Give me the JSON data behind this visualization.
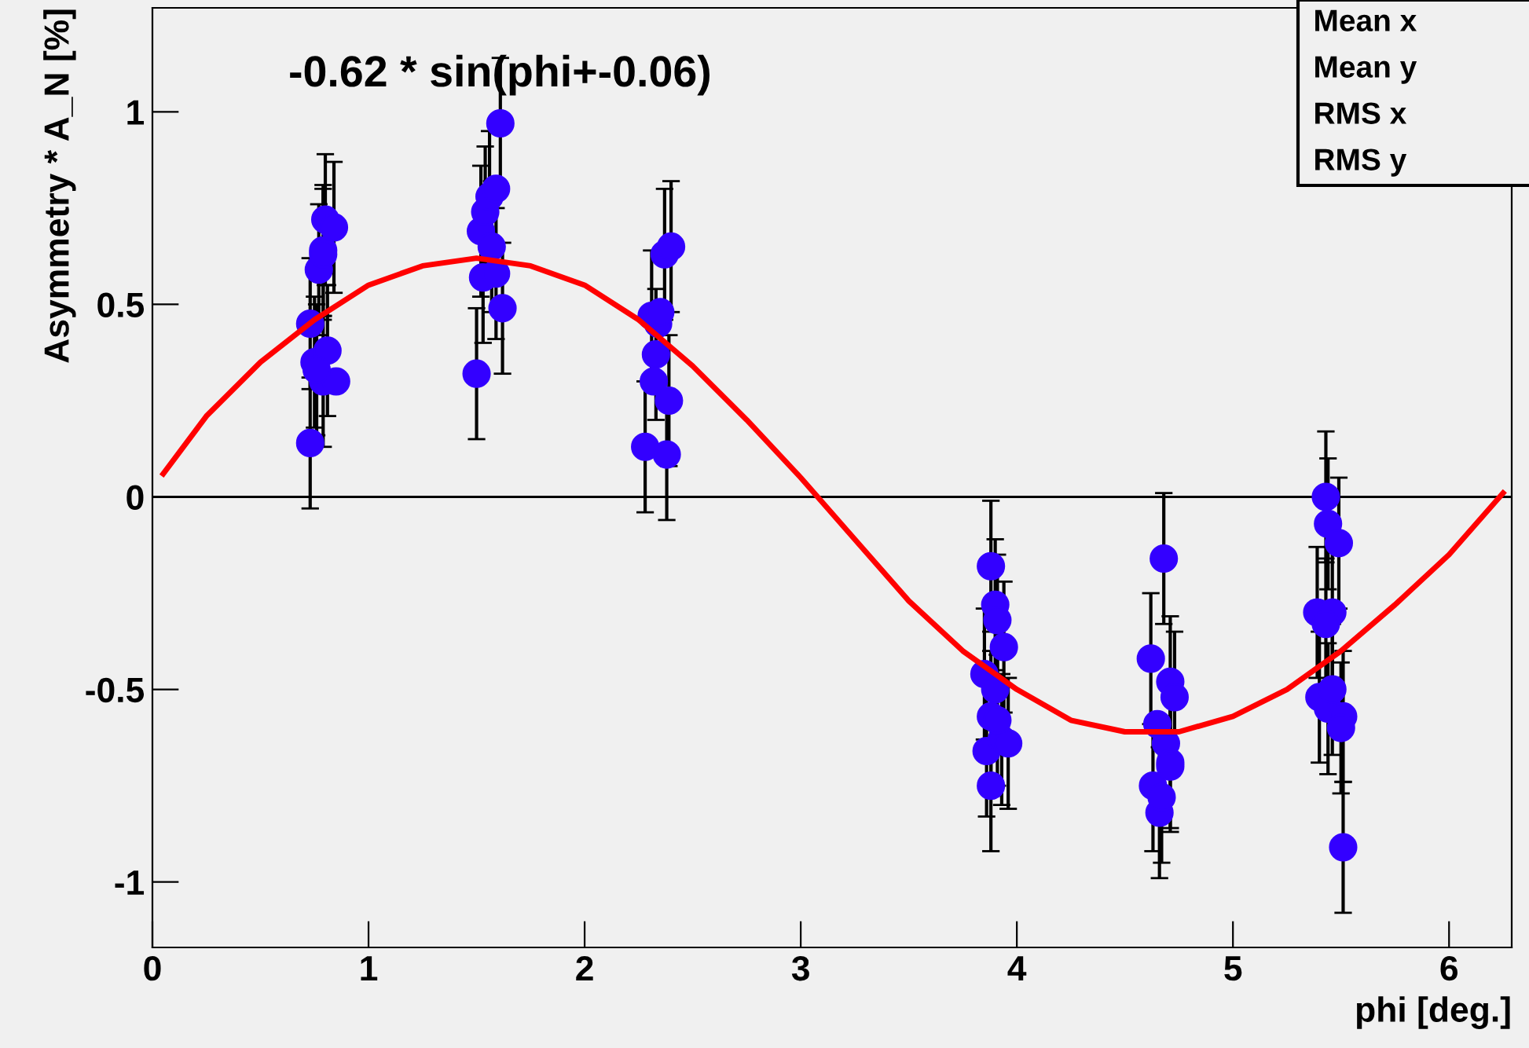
{
  "chart_data": {
    "type": "scatter",
    "title": "-0.62 * sin(phi+-0.06)",
    "xlabel": "phi [deg.]",
    "ylabel": "Asymmetry * A_N [%]",
    "xlim": [
      0,
      6.29
    ],
    "ylim": [
      -1.17,
      1.27
    ],
    "xticks": [
      0,
      1,
      2,
      3,
      4,
      5,
      6
    ],
    "yticks": [
      -1,
      -0.5,
      0,
      0.5,
      1
    ],
    "grid": false,
    "marker": "circle",
    "ref_lines": [
      {
        "axis": "y",
        "value": 0,
        "label": null,
        "color": "#000000"
      }
    ],
    "annotations": [
      "Mean x",
      "Mean y",
      "RMS x",
      "RMS y"
    ],
    "series": [
      {
        "color": "#3300ff",
        "x": [
          0.73,
          0.73,
          0.75,
          0.77,
          0.79,
          0.8,
          0.84,
          0.79,
          0.81,
          0.85,
          0.76,
          0.79,
          1.5,
          1.52,
          1.54,
          1.56,
          1.59,
          1.61,
          1.57,
          1.53,
          1.59,
          1.62,
          2.28,
          2.31,
          2.33,
          2.32,
          2.34,
          2.37,
          2.4,
          2.39,
          2.38,
          2.35,
          3.88,
          3.9,
          3.91,
          3.94,
          3.85,
          3.88,
          3.86,
          3.88,
          3.93,
          3.96,
          3.9,
          3.91,
          4.68,
          4.62,
          4.71,
          4.73,
          4.65,
          4.69,
          4.71,
          4.63,
          4.66,
          4.67,
          4.71,
          5.43,
          5.44,
          5.49,
          5.39,
          5.46,
          5.43,
          5.4,
          5.44,
          5.51,
          5.5,
          5.51,
          5.46
        ],
        "values": [
          0.14,
          0.45,
          0.35,
          0.59,
          0.64,
          0.72,
          0.7,
          0.3,
          0.38,
          0.3,
          0.33,
          0.63,
          0.32,
          0.69,
          0.74,
          0.78,
          0.8,
          0.97,
          0.65,
          0.57,
          0.58,
          0.49,
          0.13,
          0.47,
          0.37,
          0.3,
          0.45,
          0.63,
          0.65,
          0.25,
          0.11,
          0.48,
          -0.18,
          -0.28,
          -0.32,
          -0.39,
          -0.46,
          -0.57,
          -0.66,
          -0.75,
          -0.63,
          -0.64,
          -0.5,
          -0.58,
          -0.16,
          -0.42,
          -0.48,
          -0.52,
          -0.59,
          -0.64,
          -0.69,
          -0.75,
          -0.82,
          -0.78,
          -0.7,
          0.0,
          -0.07,
          -0.12,
          -0.3,
          -0.3,
          -0.33,
          -0.52,
          -0.55,
          -0.57,
          -0.6,
          -0.91,
          -0.5
        ],
        "errors": [
          0.17,
          0.17,
          0.17,
          0.17,
          0.17,
          0.17,
          0.17,
          0.17,
          0.17,
          null,
          0.17,
          0.17,
          0.17,
          0.17,
          0.17,
          0.17,
          null,
          0.17,
          0.17,
          0.17,
          0.17,
          0.17,
          0.17,
          0.17,
          0.17,
          null,
          null,
          0.17,
          0.17,
          0.17,
          0.17,
          null,
          0.17,
          0.17,
          0.17,
          0.17,
          0.17,
          0.17,
          0.17,
          0.17,
          0.17,
          0.17,
          null,
          0.17,
          0.17,
          0.17,
          0.17,
          0.17,
          null,
          null,
          0.17,
          0.17,
          0.17,
          0.17,
          0.17,
          0.17,
          0.17,
          0.17,
          0.17,
          0.17,
          0.17,
          0.17,
          0.17,
          0.17,
          0.17,
          0.17,
          0.17
        ]
      },
      {
        "type": "line",
        "color": "#ff0000",
        "line_style": "solid",
        "marker": "none",
        "x": [
          0.05,
          0.25,
          0.5,
          0.75,
          1.0,
          1.25,
          1.5,
          1.75,
          2.0,
          2.25,
          2.5,
          2.75,
          3.0,
          3.25,
          3.5,
          3.75,
          4.0,
          4.25,
          4.5,
          4.75,
          5.0,
          5.25,
          5.5,
          5.75,
          6.0,
          6.25
        ],
        "values": [
          0.06,
          0.21,
          0.35,
          0.46,
          0.55,
          0.6,
          0.62,
          0.6,
          0.55,
          0.46,
          0.34,
          0.2,
          0.05,
          -0.11,
          -0.27,
          -0.4,
          -0.5,
          -0.58,
          -0.61,
          -0.61,
          -0.57,
          -0.5,
          -0.4,
          -0.28,
          -0.15,
          0.01
        ]
      }
    ]
  }
}
